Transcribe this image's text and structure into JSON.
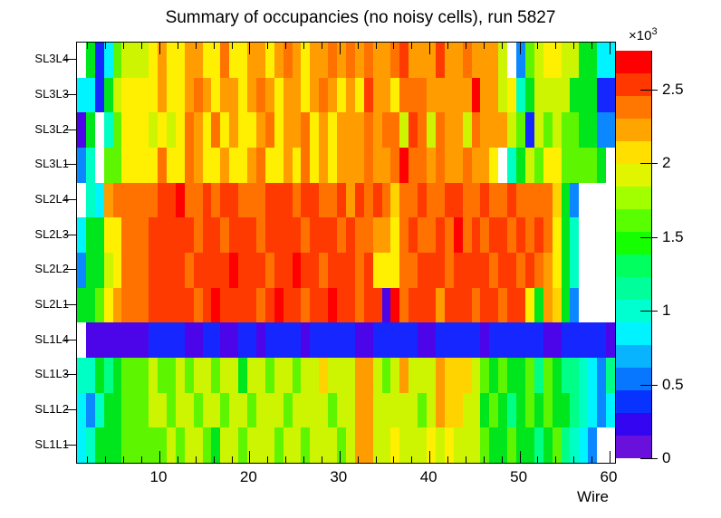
{
  "title": "Summary of occupancies (no noisy cells), run 5827",
  "x_axis": {
    "label": "Wire",
    "major_ticks": [
      10,
      20,
      30,
      40,
      50,
      60
    ],
    "minor_tick_step": 2,
    "range": [
      1,
      60
    ]
  },
  "y_axis": {
    "labels_top_to_bottom": [
      "SL3L4",
      "SL3L3",
      "SL3L2",
      "SL3L1",
      "SL2L4",
      "SL2L3",
      "SL2L2",
      "SL2L1",
      "SL1L4",
      "SL1L3",
      "SL1L2",
      "SL1L1"
    ]
  },
  "colorbar": {
    "exp_base": "×10",
    "exp_power": "3",
    "max_value": 2764,
    "ticks": [
      {
        "v": 0,
        "label": "0"
      },
      {
        "v": 500,
        "label": "0.5"
      },
      {
        "v": 1000,
        "label": "1"
      },
      {
        "v": 1500,
        "label": "1.5"
      },
      {
        "v": 2000,
        "label": "2"
      },
      {
        "v": 2500,
        "label": "2.5"
      }
    ],
    "bands_bottom_to_top": [
      "#6a10dc",
      "#3305f0",
      "#0833ff",
      "#0877ff",
      "#09b4ff",
      "#00f3ff",
      "#00ffd0",
      "#00ff9a",
      "#00ff5f",
      "#15ff00",
      "#59ff00",
      "#a2ff00",
      "#e1f500",
      "#ffdf00",
      "#ffa500",
      "#ff7700",
      "#ff3800",
      "#ff0000"
    ]
  },
  "chart_data": {
    "type": "heatmap",
    "title": "Summary of occupancies (no noisy cells), run 5827",
    "xlabel": "Wire",
    "x_range": [
      1,
      60
    ],
    "z_scale": {
      "min": 0,
      "max": 2764,
      "tick_values": [
        0,
        500,
        1000,
        1500,
        2000,
        2500
      ]
    },
    "legend_note": "tokens map to occupancy counts; W = empty (no wire)",
    "token_colors": {
      "W": "#ffffff",
      "V": "#4b05e8",
      "B": "#1526ff",
      "b": "#0b87ff",
      "C": "#00f4ff",
      "T": "#00ffc4",
      "S": "#00ff87",
      "G": "#00e61c",
      "g": "#5ef500",
      "Y": "#cdf400",
      "y": "#ffef00",
      "d": "#ffd300",
      "O": "#ff9d00",
      "o": "#ff7200",
      "R": "#ff3a00",
      "r": "#ff0000"
    },
    "token_approx_values": {
      "W": null,
      "V": 120,
      "B": 420,
      "b": 620,
      "C": 800,
      "T": 950,
      "S": 1100,
      "G": 1350,
      "g": 1600,
      "Y": 1850,
      "y": 2050,
      "d": 2180,
      "O": 2320,
      "o": 2480,
      "R": 2620,
      "r": 2760
    },
    "rows": [
      {
        "name": "SL3L4",
        "cells": "W G B C g Y Y Y y O y y O O y y o y y O O y O o O y O O o O o O o O O o R O O O R O O o O O O Y W b g Y y y Y Y G G C C"
      },
      {
        "name": "SL3L3",
        "cells": "C C B G Y y y y y O y y O o O y O O y O o O y O O y O o O y O y R O O y o o o O O O O O r O O Y y T G Y Y Y Y G G G B B"
      },
      {
        "name": "SL3L2",
        "cells": "V G W T g y y y Y y Y y o O y o y O y y O o y O O o y O y O O O o O o o Y R o Y o O O Y o O O O Y g B Y g Y g g G G b b"
      },
      {
        "name": "SL3L1",
        "cells": "b T W g g y y y y o y y o O y y O y y O o y y O y o y O y O O O o O O o r o o O o O O o O O y W T G Y g y y g g g g G W"
      },
      {
        "name": "SL2L4",
        "cells": "W T C O o o o o o R R r o o R o R R o o o R R R o R R o o R O R o R o d o o R o o R R o o R o o R o o o o d G b W W W W"
      },
      {
        "name": "SL2L3",
        "cells": "C G G y y o o o R R R R R o R R o R R R o R R R R o R R R o R o o O O y o R o o R o r o R o R R o R o R o y G T W W W W"
      },
      {
        "name": "SL2L2",
        "cells": "b G G Y y o o o R R R R o R R R R r R R R o R R r R R o R R R o R y y y o o R R R o R R R R o R R o R o O y G T W W W W"
      },
      {
        "name": "SL2L1",
        "cells": "G G g y O o o o R R R R R o R r R R R R o R r R R o R R r R R o R R V r o R R R O R R R o R R o R R y G O d G b W W W W"
      },
      {
        "name": "SL1L4",
        "cells": "W V V V V V V V B B B B V V B B V V B B V B B B B V B B B B B V V B B B B B V V B B B B B V B B B B B B V V B B B B B V"
      },
      {
        "name": "SL1L3",
        "cells": "T T G S G g g g Y g g Y g Y Y g Y Y G Y Y g Y Y g Y Y d Y Y Y O O Y g Y O Y Y Y O d d d Y g G g G G g S g G S S T C b S"
      },
      {
        "name": "SL1L2",
        "cells": "C b T G G g g g Y Y g Y Y g Y Y g Y Y g Y Y Y g Y Y Y Y g Y Y O O Y Y Y Y Y g Y O d d Y Y G g G S G g G g G G S T C b C"
      },
      {
        "name": "SL1L1",
        "cells": "C T G G G g g g g g Y g Y Y g G Y Y g Y Y Y g Y Y g Y Y Y g Y O O Y Y y Y Y Y y Y y Y Y Y g G G g G G S G g S T C b W W"
      }
    ]
  }
}
